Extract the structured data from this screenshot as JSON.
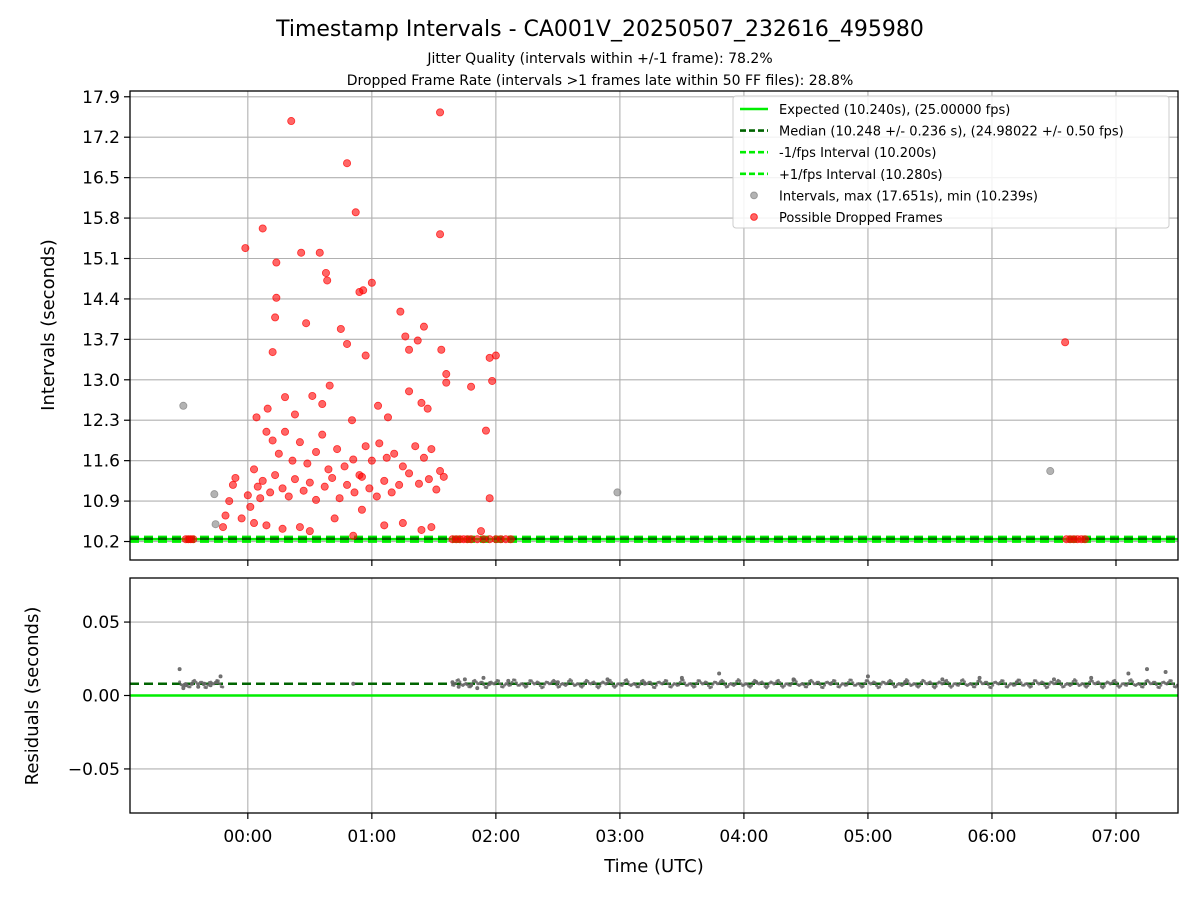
{
  "chart_data": [
    {
      "type": "scatter",
      "title": "Timestamp Intervals - CA001V_20250507_232616_495980",
      "subtitles": [
        "Jitter Quality (intervals within +/-1 frame): 78.2%",
        "Dropped Frame Rate (intervals >1 frames late within 50 FF files): 28.8%"
      ],
      "xlabel": "",
      "ylabel": "Intervals (seconds)",
      "xlim_hours": [
        -0.95,
        7.5
      ],
      "ylim": [
        9.88,
        18.0
      ],
      "y_ticks": [
        "10.2",
        "10.9",
        "11.6",
        "12.3",
        "13.0",
        "13.7",
        "14.4",
        "15.1",
        "15.8",
        "16.5",
        "17.2",
        "17.9"
      ],
      "y_tick_values": [
        10.2,
        10.9,
        11.6,
        12.3,
        13.0,
        13.7,
        14.4,
        15.1,
        15.8,
        16.5,
        17.2,
        17.9
      ],
      "x_ticks": [
        "00:00",
        "01:00",
        "02:00",
        "03:00",
        "04:00",
        "05:00",
        "06:00",
        "07:00"
      ],
      "x_tick_values": [
        0,
        1,
        2,
        3,
        4,
        5,
        6,
        7
      ],
      "grid": true,
      "legend_position": "top-right",
      "lines": {
        "expected": {
          "value": 10.24,
          "label": "Expected (10.240s), (25.00000 fps)",
          "color": "#00ee00",
          "style": "solid"
        },
        "median": {
          "value": 10.248,
          "label": "Median (10.248 +/- 0.236 s), (24.98022 +/- 0.50 fps)",
          "color": "#006400",
          "style": "dashed"
        },
        "minus_one": {
          "value": 10.2,
          "label": "-1/fps Interval (10.200s)",
          "color": "#00ee00",
          "style": "dashed"
        },
        "plus_one": {
          "value": 10.28,
          "label": "+1/fps Interval (10.280s)",
          "color": "#00ee00",
          "style": "dashed"
        }
      },
      "series": [
        {
          "name": "Intervals, max (17.651s), min (10.239s)",
          "color": "#808080",
          "points": [
            [
              -0.52,
              12.55
            ],
            [
              -0.27,
              11.02
            ],
            [
              -0.26,
              10.5
            ],
            [
              2.98,
              11.05
            ],
            [
              6.47,
              11.42
            ]
          ]
        },
        {
          "name": "Possible Dropped Frames",
          "color": "#ff0000",
          "points": [
            [
              -0.02,
              15.28
            ],
            [
              0.12,
              15.62
            ],
            [
              0.23,
              15.03
            ],
            [
              0.35,
              17.48
            ],
            [
              0.43,
              15.2
            ],
            [
              0.58,
              15.2
            ],
            [
              0.8,
              16.75
            ],
            [
              0.87,
              15.9
            ],
            [
              1.55,
              17.63
            ],
            [
              1.55,
              15.52
            ],
            [
              0.63,
              14.85
            ],
            [
              0.64,
              14.72
            ],
            [
              1.0,
              14.68
            ],
            [
              0.9,
              14.52
            ],
            [
              0.93,
              14.55
            ],
            [
              0.23,
              14.42
            ],
            [
              1.23,
              14.18
            ],
            [
              0.47,
              13.98
            ],
            [
              0.75,
              13.88
            ],
            [
              1.27,
              13.75
            ],
            [
              1.42,
              13.92
            ],
            [
              0.22,
              14.08
            ],
            [
              1.37,
              13.68
            ],
            [
              0.8,
              13.62
            ],
            [
              1.56,
              13.52
            ],
            [
              0.2,
              13.48
            ],
            [
              1.95,
              13.38
            ],
            [
              2.0,
              13.42
            ],
            [
              0.95,
              13.42
            ],
            [
              1.3,
              13.52
            ],
            [
              6.59,
              13.65
            ],
            [
              0.07,
              12.35
            ],
            [
              0.16,
              12.5
            ],
            [
              0.3,
              12.7
            ],
            [
              0.38,
              12.4
            ],
            [
              0.52,
              12.72
            ],
            [
              0.6,
              12.58
            ],
            [
              0.66,
              12.9
            ],
            [
              0.84,
              12.3
            ],
            [
              1.05,
              12.55
            ],
            [
              1.13,
              12.35
            ],
            [
              1.3,
              12.8
            ],
            [
              1.4,
              12.6
            ],
            [
              1.45,
              12.5
            ],
            [
              1.6,
              12.95
            ],
            [
              1.8,
              12.88
            ],
            [
              1.97,
              12.98
            ],
            [
              1.6,
              13.1
            ],
            [
              0.15,
              12.1
            ],
            [
              0.2,
              11.95
            ],
            [
              0.25,
              11.72
            ],
            [
              0.3,
              12.1
            ],
            [
              0.36,
              11.6
            ],
            [
              0.42,
              11.92
            ],
            [
              0.48,
              11.55
            ],
            [
              0.55,
              11.75
            ],
            [
              0.6,
              12.05
            ],
            [
              0.65,
              11.45
            ],
            [
              0.72,
              11.8
            ],
            [
              0.78,
              11.5
            ],
            [
              0.85,
              11.62
            ],
            [
              0.9,
              11.35
            ],
            [
              0.95,
              11.85
            ],
            [
              1.0,
              11.6
            ],
            [
              1.06,
              11.9
            ],
            [
              1.12,
              11.65
            ],
            [
              1.18,
              11.72
            ],
            [
              1.25,
              11.5
            ],
            [
              1.35,
              11.85
            ],
            [
              1.42,
              11.65
            ],
            [
              1.48,
              11.8
            ],
            [
              1.55,
              11.42
            ],
            [
              1.92,
              12.12
            ],
            [
              0.0,
              11.0
            ],
            [
              0.02,
              10.8
            ],
            [
              -0.1,
              11.3
            ],
            [
              -0.15,
              10.9
            ],
            [
              -0.18,
              10.65
            ],
            [
              -0.12,
              11.18
            ],
            [
              0.05,
              11.45
            ],
            [
              0.08,
              11.15
            ],
            [
              0.1,
              10.95
            ],
            [
              0.12,
              11.25
            ],
            [
              0.18,
              11.05
            ],
            [
              0.22,
              11.35
            ],
            [
              0.28,
              11.12
            ],
            [
              0.33,
              10.98
            ],
            [
              0.38,
              11.28
            ],
            [
              0.45,
              11.08
            ],
            [
              0.5,
              11.22
            ],
            [
              0.55,
              10.92
            ],
            [
              0.62,
              11.15
            ],
            [
              0.68,
              11.3
            ],
            [
              0.74,
              10.95
            ],
            [
              0.8,
              11.18
            ],
            [
              0.86,
              11.05
            ],
            [
              0.92,
              11.32
            ],
            [
              0.98,
              11.12
            ],
            [
              1.04,
              10.98
            ],
            [
              1.1,
              11.25
            ],
            [
              1.16,
              11.05
            ],
            [
              1.22,
              11.18
            ],
            [
              1.3,
              11.38
            ],
            [
              1.38,
              11.2
            ],
            [
              1.46,
              11.28
            ],
            [
              1.52,
              11.1
            ],
            [
              1.58,
              11.32
            ],
            [
              1.95,
              10.95
            ],
            [
              -0.2,
              10.45
            ],
            [
              -0.05,
              10.6
            ],
            [
              0.05,
              10.52
            ],
            [
              0.15,
              10.48
            ],
            [
              0.28,
              10.42
            ],
            [
              0.42,
              10.45
            ],
            [
              0.5,
              10.38
            ],
            [
              0.7,
              10.6
            ],
            [
              0.85,
              10.3
            ],
            [
              0.92,
              10.75
            ],
            [
              1.1,
              10.48
            ],
            [
              1.25,
              10.52
            ],
            [
              1.4,
              10.4
            ],
            [
              1.48,
              10.45
            ],
            [
              1.88,
              10.38
            ],
            [
              -0.5,
              10.24
            ],
            [
              -0.48,
              10.24
            ],
            [
              -0.46,
              10.24
            ],
            [
              -0.44,
              10.24
            ],
            [
              1.65,
              10.24
            ],
            [
              1.68,
              10.24
            ],
            [
              1.71,
              10.24
            ],
            [
              1.74,
              10.24
            ],
            [
              1.77,
              10.24
            ],
            [
              1.8,
              10.24
            ],
            [
              1.85,
              10.24
            ],
            [
              1.9,
              10.24
            ],
            [
              1.95,
              10.24
            ],
            [
              2.0,
              10.24
            ],
            [
              2.04,
              10.24
            ],
            [
              2.08,
              10.24
            ],
            [
              2.12,
              10.24
            ],
            [
              6.6,
              10.24
            ],
            [
              6.63,
              10.24
            ],
            [
              6.66,
              10.24
            ],
            [
              6.69,
              10.24
            ],
            [
              6.72,
              10.24
            ],
            [
              6.75,
              10.24
            ]
          ]
        }
      ]
    },
    {
      "type": "scatter",
      "title": "",
      "xlabel": "Time (UTC)",
      "ylabel": "Residuals (seconds)",
      "xlim_hours": [
        -0.95,
        7.5
      ],
      "ylim": [
        -0.08,
        0.08
      ],
      "y_ticks": [
        "0.05",
        "0.00",
        "−0.05"
      ],
      "y_tick_values": [
        0.05,
        0.0,
        -0.05
      ],
      "x_ticks": [
        "00:00",
        "01:00",
        "02:00",
        "03:00",
        "04:00",
        "05:00",
        "06:00",
        "07:00"
      ],
      "x_tick_values": [
        0,
        1,
        2,
        3,
        4,
        5,
        6,
        7
      ],
      "grid": true,
      "lines": {
        "zero": {
          "value": 0.0,
          "color": "#00ee00",
          "style": "solid"
        },
        "median": {
          "value": 0.008,
          "color": "#006400",
          "style": "dashed"
        }
      },
      "series": [
        {
          "color": "#666666",
          "description_ranges": [
            [
              -0.55,
              -0.2
            ],
            [
              1.65,
              7.5
            ]
          ],
          "points": [
            [
              -0.55,
              0.018
            ],
            [
              -0.52,
              0.005
            ],
            [
              -0.5,
              0.007
            ],
            [
              -0.45,
              0.008
            ],
            [
              -0.4,
              0.006
            ],
            [
              -0.35,
              0.008
            ],
            [
              -0.3,
              0.007
            ],
            [
              -0.25,
              0.009
            ],
            [
              -0.22,
              0.013
            ],
            [
              0.85,
              0.008
            ],
            [
              1.65,
              0.009
            ],
            [
              1.7,
              0.006
            ],
            [
              1.75,
              0.011
            ],
            [
              1.8,
              0.007
            ],
            [
              1.85,
              0.005
            ],
            [
              1.9,
              0.012
            ],
            [
              1.95,
              0.008
            ],
            [
              2.1,
              0.01
            ],
            [
              2.5,
              0.009
            ],
            [
              2.9,
              0.011
            ],
            [
              3.2,
              0.008
            ],
            [
              3.5,
              0.012
            ],
            [
              3.8,
              0.015
            ],
            [
              4.1,
              0.009
            ],
            [
              4.4,
              0.011
            ],
            [
              4.7,
              0.008
            ],
            [
              5.0,
              0.013
            ],
            [
              5.3,
              0.009
            ],
            [
              5.6,
              0.011
            ],
            [
              5.9,
              0.012
            ],
            [
              6.2,
              0.009
            ],
            [
              6.5,
              0.011
            ],
            [
              6.8,
              0.012
            ],
            [
              7.1,
              0.015
            ],
            [
              7.25,
              0.018
            ],
            [
              7.4,
              0.016
            ]
          ]
        }
      ]
    }
  ]
}
